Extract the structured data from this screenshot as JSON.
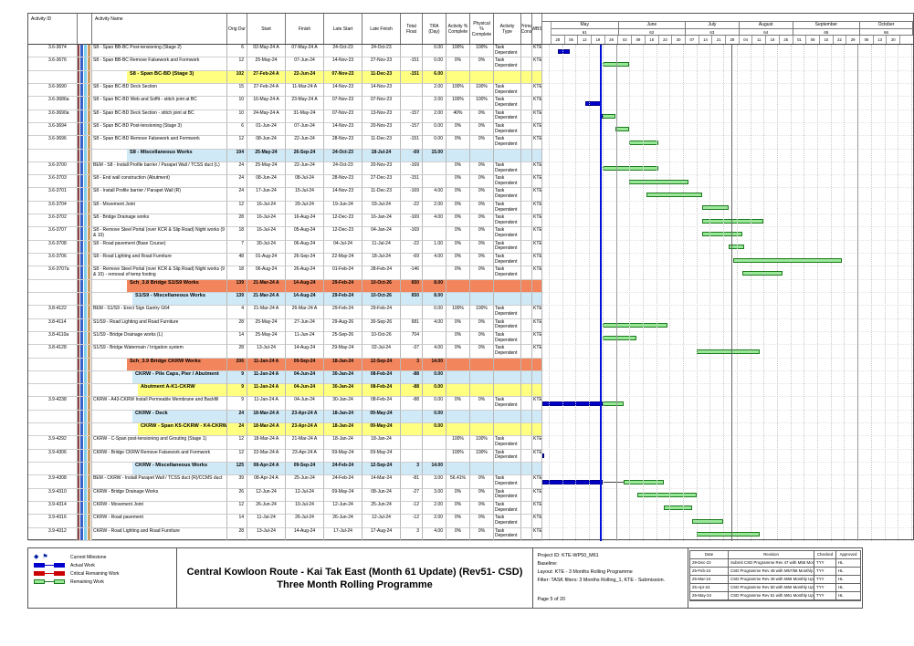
{
  "header": {
    "columns": [
      "Activity ID",
      "",
      "Activity Name",
      "Orig Dur",
      "Start",
      "Finish",
      "Late Start",
      "Late Finish",
      "Total Float",
      "TRA (Day)",
      "Activity % Complete",
      "Physical % Complete",
      "Activity Type",
      "Prima Cons",
      "WBS"
    ]
  },
  "timeline": {
    "data_date": "25-May-24",
    "window_start": "28-Apr-24",
    "months": [
      {
        "name": "May",
        "num": "61",
        "weeks": [
          "28",
          "05",
          "12",
          "19",
          "26"
        ]
      },
      {
        "name": "June",
        "num": "62",
        "weeks": [
          "02",
          "09",
          "16",
          "23",
          "30"
        ]
      },
      {
        "name": "July",
        "num": "63",
        "weeks": [
          "07",
          "14",
          "21",
          "28"
        ]
      },
      {
        "name": "August",
        "num": "64",
        "weeks": [
          "04",
          "11",
          "18",
          "25"
        ]
      },
      {
        "name": "September",
        "num": "65",
        "weeks": [
          "01",
          "08",
          "15",
          "22",
          "29"
        ]
      },
      {
        "name": "October",
        "num": "66",
        "weeks": [
          "06",
          "13",
          "20"
        ]
      }
    ],
    "marker_lines": [
      "02-Jun-24",
      "01-Aug-24",
      "06-Oct-24"
    ]
  },
  "tasks": [
    {
      "kind": "task",
      "id": "3.6-3674",
      "name": "S8 - Span BB-BC Post-tensioning (Stage 2)",
      "dur": "6",
      "start": "02-May-24 A",
      "finish": "07-May-24 A",
      "ls": "24-Oct-23",
      "lf": "24-Oct-23",
      "fl": "",
      "tra": "0.00",
      "act": "100%",
      "phy": "100%",
      "type": "Task Dependent",
      "pc": "",
      "wbs": "KTE4"
    },
    {
      "kind": "task",
      "id": "3.6-3676",
      "name": "S8 - Span BB-BC Remove Falsework and Formwork",
      "dur": "12",
      "start": "25-May-24",
      "finish": "07-Jun-24",
      "ls": "14-Nov-23",
      "lf": "27-Nov-23",
      "fl": "-151",
      "tra": "0.00",
      "act": "0%",
      "phy": "0%",
      "type": "Task Dependent",
      "pc": "",
      "wbs": "KTE4"
    },
    {
      "kind": "band",
      "color": "yellow",
      "indent": 0,
      "name": "S8 - Span BC-BD (Stage 3)",
      "dur": "102",
      "start": "27-Feb-24 A",
      "finish": "22-Jun-24",
      "ls": "07-Nov-23",
      "lf": "11-Dec-23",
      "fl": "-151",
      "tra": "6.00"
    },
    {
      "kind": "task",
      "id": "3.6-3690",
      "name": "S8 - Span BC-BD Deck Section",
      "dur": "15",
      "start": "27-Feb-24 A",
      "finish": "11-Mar-24 A",
      "ls": "14-Nov-23",
      "lf": "14-Nov-23",
      "fl": "",
      "tra": "2.00",
      "act": "100%",
      "phy": "100%",
      "type": "Task Dependent",
      "pc": "",
      "wbs": "KTE4"
    },
    {
      "kind": "task",
      "id": "3.6-3686a",
      "name": "S8 - Span BC-BD Web and Soffit - stitch joint at BC",
      "dur": "10",
      "start": "16-May-24 A",
      "finish": "23-May-24 A",
      "ls": "07-Nov-23",
      "lf": "07-Nov-23",
      "fl": "",
      "tra": "2.00",
      "act": "100%",
      "phy": "100%",
      "type": "Task Dependent",
      "pc": "",
      "wbs": "KTE4"
    },
    {
      "kind": "task",
      "id": "3.6-3690a",
      "name": "S8 - Span BC-BD Deck Section - stitch joint at BC",
      "dur": "10",
      "start": "24-May-24 A",
      "finish": "31-May-24",
      "ls": "07-Nov-23",
      "lf": "13-Nov-23",
      "fl": "-157",
      "tra": "2.00",
      "act": "40%",
      "phy": "0%",
      "type": "Task Dependent",
      "pc": "",
      "wbs": "KTE4"
    },
    {
      "kind": "task",
      "id": "3.6-3694",
      "name": "S8 - Span BC-BD Post-tensioning (Stage 3)",
      "dur": "6",
      "start": "01-Jun-24",
      "finish": "07-Jun-24",
      "ls": "14-Nov-23",
      "lf": "20-Nov-23",
      "fl": "-157",
      "tra": "0.00",
      "act": "0%",
      "phy": "0%",
      "type": "Task Dependent",
      "pc": "",
      "wbs": "KTE4"
    },
    {
      "kind": "task",
      "id": "3.6-3696",
      "name": "S8 - Span BC-BD Remove Falsework and Formwork",
      "dur": "12",
      "start": "08-Jun-24",
      "finish": "22-Jun-24",
      "ls": "28-Nov-23",
      "lf": "11-Dec-23",
      "fl": "-151",
      "tra": "0.00",
      "act": "0%",
      "phy": "0%",
      "type": "Task Dependent",
      "pc": "",
      "wbs": "KTE4"
    },
    {
      "kind": "band",
      "color": "blue",
      "indent": 0,
      "name": "S8 - Miscellaneous Works",
      "dur": "104",
      "start": "25-May-24",
      "finish": "26-Sep-24",
      "ls": "24-Oct-23",
      "lf": "18-Jul-24",
      "fl": "-69",
      "tra": "15.00"
    },
    {
      "kind": "task",
      "id": "3.6-3700",
      "name": "BEM - S8 - Install Profile barrier / Parapet Wall / TCSS duct (L)",
      "dur": "24",
      "start": "25-May-24",
      "finish": "22-Jun-24",
      "ls": "24-Oct-23",
      "lf": "20-Nov-23",
      "fl": "-169",
      "tra": "",
      "act": "0%",
      "phy": "0%",
      "type": "Task Dependent",
      "pc": "",
      "wbs": "KTE4"
    },
    {
      "kind": "task",
      "id": "3.6-3703",
      "name": "S8 - End wall construction (Abutment)",
      "dur": "24",
      "start": "08-Jun-24",
      "finish": "08-Jul-24",
      "ls": "28-Nov-23",
      "lf": "27-Dec-23",
      "fl": "-151",
      "tra": "",
      "act": "0%",
      "phy": "0%",
      "type": "Task Dependent",
      "pc": "",
      "wbs": "KTE4"
    },
    {
      "kind": "task",
      "id": "3.6-3701",
      "name": "S8 - Install Profile barrier / Parapet Wall (R)",
      "dur": "24",
      "start": "17-Jun-24",
      "finish": "15-Jul-24",
      "ls": "14-Nov-23",
      "lf": "11-Dec-23",
      "fl": "-169",
      "tra": "4.00",
      "act": "0%",
      "phy": "0%",
      "type": "Task Dependent",
      "pc": "",
      "wbs": "KTE4"
    },
    {
      "kind": "task",
      "id": "3.6-3704",
      "name": "S8 - Movement Joint",
      "dur": "12",
      "start": "16-Jul-24",
      "finish": "29-Jul-24",
      "ls": "19-Jun-24",
      "lf": "03-Jul-24",
      "fl": "-22",
      "tra": "2.00",
      "act": "0%",
      "phy": "0%",
      "type": "Task Dependent",
      "pc": "",
      "wbs": "KTE4"
    },
    {
      "kind": "task",
      "id": "3.6-3702",
      "name": "S8 - Bridge Drainage works",
      "dur": "28",
      "start": "16-Jul-24",
      "finish": "16-Aug-24",
      "ls": "12-Dec-23",
      "lf": "16-Jan-24",
      "fl": "-169",
      "tra": "4.00",
      "act": "0%",
      "phy": "0%",
      "type": "Task Dependent",
      "pc": "",
      "wbs": "KTE4"
    },
    {
      "kind": "task",
      "id": "3.6-3707",
      "name": "S8 - Remove Steel Portal (over KCR & Slip Road) Night works (9 & 10)",
      "dur": "18",
      "start": "16-Jul-24",
      "finish": "05-Aug-24",
      "ls": "12-Dec-23",
      "lf": "04-Jan-24",
      "fl": "-169",
      "tra": "",
      "act": "0%",
      "phy": "0%",
      "type": "Task Dependent",
      "pc": "",
      "wbs": "KTE4"
    },
    {
      "kind": "task",
      "id": "3.6-3708",
      "name": "S8 - Road pavement (Base Course)",
      "dur": "7",
      "start": "30-Jul-24",
      "finish": "06-Aug-24",
      "ls": "04-Jul-24",
      "lf": "11-Jul-24",
      "fl": "-22",
      "tra": "1.00",
      "act": "0%",
      "phy": "0%",
      "type": "Task Dependent",
      "pc": "",
      "wbs": "KTE4"
    },
    {
      "kind": "task",
      "id": "3.6-3706",
      "name": "S8 - Road Lighting and Road Furniture",
      "dur": "48",
      "start": "01-Aug-24",
      "finish": "26-Sep-24",
      "ls": "22-May-24",
      "lf": "18-Jul-24",
      "fl": "-69",
      "tra": "4.00",
      "act": "0%",
      "phy": "0%",
      "type": "Task Dependent",
      "pc": "",
      "wbs": "KTE4"
    },
    {
      "kind": "task",
      "id": "3.6-3707a",
      "name": "S8 - Remove Steel Portal (over KCR & Slip Road) Night works (9 & 10) - removal of temp footing",
      "dur": "18",
      "start": "06-Aug-24",
      "finish": "26-Aug-24",
      "ls": "01-Feb-24",
      "lf": "28-Feb-24",
      "fl": "-146",
      "tra": "",
      "act": "0%",
      "phy": "0%",
      "type": "Task Dependent",
      "pc": "",
      "wbs": "KTE4"
    },
    {
      "kind": "band",
      "color": "orange",
      "indent": 0,
      "name": "Sch_3.8 Bridge S1/S9 Works",
      "dur": "139",
      "start": "21-Mar-24 A",
      "finish": "14-Aug-24",
      "ls": "29-Feb-24",
      "lf": "10-Oct-26",
      "fl": "650",
      "tra": "8.00"
    },
    {
      "kind": "band",
      "color": "blue",
      "indent": 1,
      "name": "S1/S9 - Miscellaneous Works",
      "dur": "139",
      "start": "21-Mar-24 A",
      "finish": "14-Aug-24",
      "ls": "29-Feb-24",
      "lf": "10-Oct-26",
      "fl": "650",
      "tra": "8.00"
    },
    {
      "kind": "task",
      "id": "3.8-4122",
      "name": "BEM - S1/S9 - Erect Sign Gantry G64",
      "dur": "4",
      "start": "21-Mar-24 A",
      "finish": "26-Mar-24 A",
      "ls": "29-Feb-24",
      "lf": "29-Feb-24",
      "fl": "",
      "tra": "0.00",
      "act": "100%",
      "phy": "100%",
      "type": "Task Dependent",
      "pc": "",
      "wbs": "KTE4"
    },
    {
      "kind": "task",
      "id": "3.8-4114",
      "name": "S1/S9 - Road Lighting and Road Furniture",
      "dur": "28",
      "start": "25-May-24",
      "finish": "27-Jun-24",
      "ls": "29-Aug-26",
      "lf": "30-Sep-26",
      "fl": "681",
      "tra": "4.00",
      "act": "0%",
      "phy": "0%",
      "type": "Task Dependent",
      "pc": "",
      "wbs": "KTE4"
    },
    {
      "kind": "task",
      "id": "3.8-4110a",
      "name": "S1/S9 - Bridge Drainage works (L)",
      "dur": "14",
      "start": "25-May-24",
      "finish": "11-Jun-24",
      "ls": "25-Sep-26",
      "lf": "10-Oct-26",
      "fl": "704",
      "tra": "",
      "act": "0%",
      "phy": "0%",
      "type": "Task Dependent",
      "pc": "",
      "wbs": "KTE4"
    },
    {
      "kind": "task",
      "id": "3.8-4128",
      "name": "S1/S9 - Bridge Watermain / Irrigation system",
      "dur": "28",
      "start": "13-Jul-24",
      "finish": "14-Aug-24",
      "ls": "29-May-24",
      "lf": "02-Jul-24",
      "fl": "-37",
      "tra": "4.00",
      "act": "0%",
      "phy": "0%",
      "type": "Task Dependent",
      "pc": "",
      "wbs": "KTE4"
    },
    {
      "kind": "band",
      "color": "orange",
      "indent": 0,
      "name": "Sch_3.9 Bridge CKRW Works",
      "dur": "206",
      "start": "11-Jan-24 A",
      "finish": "09-Sep-24",
      "ls": "18-Jan-24",
      "lf": "12-Sep-24",
      "fl": "3",
      "tra": "14.00"
    },
    {
      "kind": "band",
      "color": "blue",
      "indent": 1,
      "name": "CKRW - Pile Caps, Pier / Abutment",
      "dur": "9",
      "start": "11-Jan-24 A",
      "finish": "04-Jun-24",
      "ls": "30-Jan-24",
      "lf": "08-Feb-24",
      "fl": "-88",
      "tra": "0.00"
    },
    {
      "kind": "band",
      "color": "yellow",
      "indent": 2,
      "name": "Abutment A-K1-CKRW",
      "dur": "9",
      "start": "11-Jan-24 A",
      "finish": "04-Jun-24",
      "ls": "30-Jan-24",
      "lf": "08-Feb-24",
      "fl": "-88",
      "tra": "0.00"
    },
    {
      "kind": "task",
      "id": "3.9-4238",
      "name": "CKRW - A43-CKRW Install Permeable Membrane and Backfill",
      "dur": "9",
      "start": "11-Jan-24 A",
      "finish": "04-Jun-24",
      "ls": "30-Jan-24",
      "lf": "08-Feb-24",
      "fl": "-88",
      "tra": "0.00",
      "act": "0%",
      "phy": "0%",
      "type": "Task Dependent",
      "pc": "",
      "wbs": "KTE4"
    },
    {
      "kind": "band",
      "color": "blue",
      "indent": 1,
      "name": "CKRW - Deck",
      "dur": "24",
      "start": "18-Mar-24 A",
      "finish": "23-Apr-24 A",
      "ls": "18-Jan-24",
      "lf": "09-May-24",
      "fl": "",
      "tra": "0.00"
    },
    {
      "kind": "band",
      "color": "yellow",
      "indent": 2,
      "name": "CKRW - Span K5-CKRW - K4-CKRW",
      "dur": "24",
      "start": "18-Mar-24 A",
      "finish": "23-Apr-24 A",
      "ls": "18-Jan-24",
      "lf": "09-May-24",
      "fl": "",
      "tra": "0.00"
    },
    {
      "kind": "task",
      "id": "3.9-4292",
      "name": "CKRW - C-Span post-tensioning and Grouting (Stage 1)",
      "dur": "12",
      "start": "18-Mar-24 A",
      "finish": "21-Mar-24 A",
      "ls": "18-Jan-24",
      "lf": "18-Jan-24",
      "fl": "",
      "tra": "",
      "act": "100%",
      "phy": "100%",
      "type": "Task Dependent",
      "pc": "",
      "wbs": "KTE4"
    },
    {
      "kind": "task",
      "id": "3.9-4306",
      "name": "CKRW - Bridge CKRW Remove Falsework and Formwork",
      "dur": "12",
      "start": "22-Mar-24 A",
      "finish": "23-Apr-24 A",
      "ls": "09-May-24",
      "lf": "09-May-24",
      "fl": "",
      "tra": "",
      "act": "100%",
      "phy": "100%",
      "type": "Task Dependent",
      "pc": "",
      "wbs": "KTE4"
    },
    {
      "kind": "band",
      "color": "blue",
      "indent": 1,
      "name": "CKRW - Miscellaneous Works",
      "dur": "125",
      "start": "08-Apr-24 A",
      "finish": "09-Sep-24",
      "ls": "24-Feb-24",
      "lf": "12-Sep-24",
      "fl": "3",
      "tra": "14.00"
    },
    {
      "kind": "task",
      "id": "3.9-4308",
      "name": "BEM - CKRW - Install Parapet Wall / TCSS duct (R)/CCMS duct",
      "dur": "39",
      "start": "08-Apr-24 A",
      "finish": "25-Jun-24",
      "ls": "24-Feb-24",
      "lf": "14-Mar-24",
      "fl": "-81",
      "tra": "3.00",
      "act": "56.41%",
      "phy": "0%",
      "type": "Task Dependent",
      "pc": "",
      "wbs": "KTE4",
      "rs": "05-Jun-24"
    },
    {
      "kind": "task",
      "id": "3.9-4310",
      "name": "CKRW - Bridge Drainage Works",
      "dur": "26",
      "start": "12-Jun-24",
      "finish": "12-Jul-24",
      "ls": "09-May-24",
      "lf": "08-Jun-24",
      "fl": "-27",
      "tra": "3.00",
      "act": "0%",
      "phy": "0%",
      "type": "Task Dependent",
      "pc": "",
      "wbs": "KTE4"
    },
    {
      "kind": "task",
      "id": "3.9-4314",
      "name": "CKRW - Movement Joint",
      "dur": "12",
      "start": "26-Jun-24",
      "finish": "10-Jul-24",
      "ls": "12-Jun-24",
      "lf": "25-Jun-24",
      "fl": "-12",
      "tra": "2.00",
      "act": "0%",
      "phy": "0%",
      "type": "Task Dependent",
      "pc": "",
      "wbs": "KTE4"
    },
    {
      "kind": "task",
      "id": "3.9-4316",
      "name": "CKRW - Road pavement",
      "dur": "14",
      "start": "11-Jul-24",
      "finish": "26-Jul-24",
      "ls": "26-Jun-24",
      "lf": "12-Jul-24",
      "fl": "-12",
      "tra": "2.00",
      "act": "0%",
      "phy": "0%",
      "type": "Task Dependent",
      "pc": "",
      "wbs": "KTE4"
    },
    {
      "kind": "task",
      "id": "3.9-4312",
      "name": "CKRW - Road Lighting and Road Furniture",
      "dur": "28",
      "start": "13-Jul-24",
      "finish": "14-Aug-24",
      "ls": "17-Jul-24",
      "lf": "17-Aug-24",
      "fl": "3",
      "tra": "4.00",
      "act": "0%",
      "phy": "0%",
      "type": "Task Dependent",
      "pc": "",
      "wbs": "KTE4"
    }
  ],
  "legend": {
    "items": [
      {
        "icon": "milestone-icon",
        "label": "Current Milestone"
      },
      {
        "icon": "actual-bar-icon",
        "label": "Actual Work"
      },
      {
        "icon": "critical-bar-icon",
        "label": "Critical Remaining Work"
      },
      {
        "icon": "remaining-bar-icon",
        "label": "Remaining Work"
      }
    ]
  },
  "title_block": {
    "line1": "Central Kowloon Route - Kai Tak East (Month 61 Update) (Rev51- CSD)",
    "line2": "Three Month Rolling Programme"
  },
  "project_info": {
    "project_id": "Project ID: KTE-WP50_M61",
    "baseline": "Baseline:",
    "layout": "Layout: KTE - 3 Months Rolling Programme",
    "filter": "Filter: TASK filters: 3 Months Rolling_1, KTE - Submission.",
    "page": "Page 5 of 20"
  },
  "revision_table": {
    "headers": [
      "Date",
      "Revision",
      "Checked",
      "Approved"
    ],
    "rows": [
      [
        "29-Dec-23",
        "Submit CSD Programme Rev 47 with M55 Mon...",
        "TYY",
        "HL"
      ],
      [
        "25-Feb-24",
        "CSD Programme Rev 48 with M57/58 Monthly...",
        "TYY",
        "HL"
      ],
      [
        "25-Mar-24",
        "CSD Programme Rev 49 with M59 Monthly Up...",
        "TYY",
        "HL"
      ],
      [
        "25-Apr-24",
        "CSD Programme Rev 50 with M60 Monthly Up...",
        "TYY",
        "HL"
      ],
      [
        "25-May-24",
        "CSD Programme Rev 51 with M61 Monthly Up...",
        "TYY",
        "HL"
      ]
    ]
  },
  "colors": {
    "actual_bar": "#0000cc",
    "remaining_fill": "#97e897",
    "remaining_border": "#1f7a1f",
    "critical_bar": "#cc0000",
    "band_yellow": "#ffff80",
    "band_blue": "#cfe9f7",
    "band_orange": "#f2855c",
    "data_date_line": "#0013d6"
  }
}
